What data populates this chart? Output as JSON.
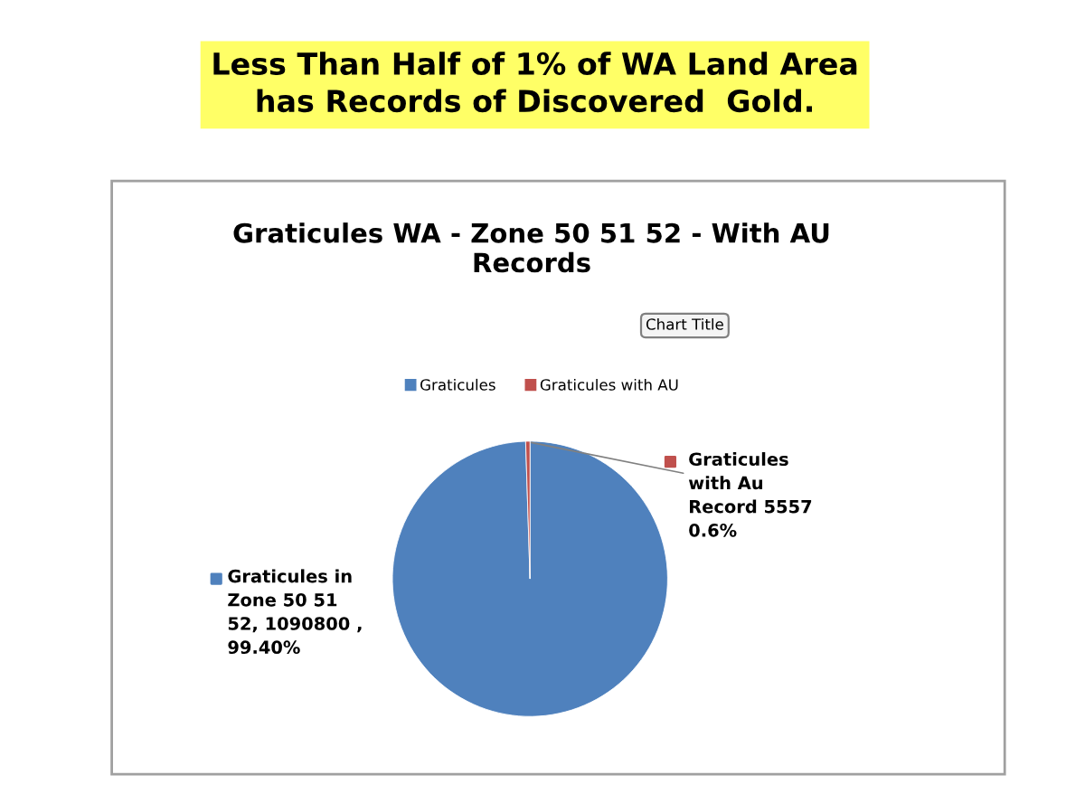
{
  "chart_data": {
    "type": "pie",
    "title": "Less Than Half of 1% of WA Land Area\nhas Records of Discovered  Gold.",
    "subtitle": "Graticules WA - Zone 50 51 52 - With AU\nRecords",
    "categories": [
      "Graticules",
      "Graticules with AU"
    ],
    "values": [
      1090800,
      5557
    ],
    "colors": [
      "#4f81bd",
      "#c0504d"
    ],
    "value_labels": [
      "Graticules in\nZone 50 51\n52, 1090800 ,\n99.40%",
      "Graticules\nwith Au\nRecord 5557\n0.6%"
    ],
    "annotations": [
      "Chart Title"
    ],
    "legend": "top"
  }
}
